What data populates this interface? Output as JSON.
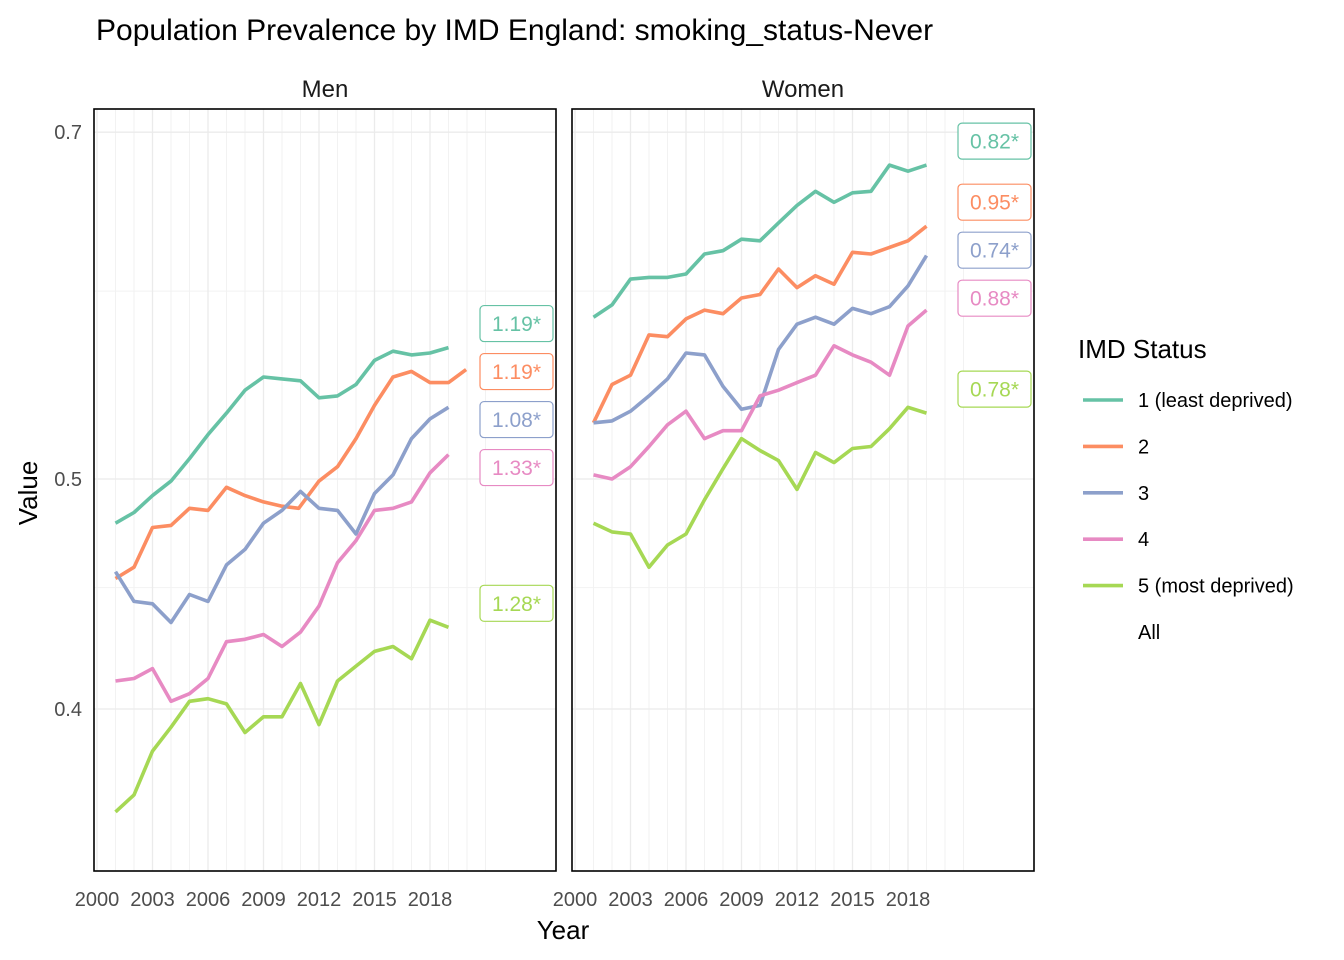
{
  "chart_data": {
    "type": "line",
    "title": "Population Prevalence by IMD England: smoking_status-Never",
    "xlabel": "Year",
    "ylabel": "Value",
    "y_scale": "log",
    "ylim": [
      0.355,
      0.73
    ],
    "xlim": [
      2000,
      2020
    ],
    "x_ticks": [
      "2000",
      "2003",
      "2006",
      "2009",
      "2012",
      "2015",
      "2018"
    ],
    "y_ticks": [
      "0.4",
      "0.5",
      "0.7"
    ],
    "x": [
      2001,
      2002,
      2003,
      2004,
      2005,
      2006,
      2007,
      2008,
      2009,
      2010,
      2011,
      2012,
      2013,
      2014,
      2015,
      2016,
      2017,
      2018,
      2019
    ],
    "legend": {
      "title": "IMD Status",
      "position": "right",
      "items": [
        {
          "label": "1 (least deprived)",
          "color": "#66C2A5"
        },
        {
          "label": "2",
          "color": "#FC8D62"
        },
        {
          "label": "3",
          "color": "#8DA0CB"
        },
        {
          "label": "4",
          "color": "#E78AC3"
        },
        {
          "label": "5 (most deprived)",
          "color": "#A6D854"
        },
        {
          "label": "All",
          "color": "none"
        }
      ]
    },
    "panels": [
      {
        "name": "Men",
        "series": [
          {
            "name": "1 (least deprived)",
            "color": "#66C2A5",
            "values": [
              0.479,
              0.484,
              0.492,
              0.499,
              0.51,
              0.522,
              0.533,
              0.545,
              0.552,
              0.551,
              0.55,
              0.541,
              0.542,
              0.548,
              0.561,
              0.566,
              0.564,
              0.565,
              0.568
            ],
            "label": "1.19*"
          },
          {
            "name": "2",
            "color": "#FC8D62",
            "values": [
              0.454,
              0.459,
              0.477,
              0.478,
              0.486,
              0.485,
              0.496,
              0.492,
              0.489,
              0.487,
              0.486,
              0.499,
              0.506,
              0.52,
              0.537,
              0.552,
              0.555,
              0.549,
              0.549,
              0.556
            ],
            "x_override": [
              2001,
              2002,
              2003,
              2004,
              2005,
              2006,
              2007,
              2008,
              2009,
              2010,
              2010.9,
              2012,
              2013,
              2014,
              2015,
              2016,
              2017,
              2018,
              2019,
              2019.95
            ],
            "label": "1.19*"
          },
          {
            "name": "3",
            "color": "#8DA0CB",
            "values": [
              0.457,
              0.444,
              0.443,
              0.435,
              0.447,
              0.444,
              0.46,
              0.467,
              0.479,
              0.485,
              0.494,
              0.486,
              0.485,
              0.474,
              0.493,
              0.502,
              0.52,
              0.53,
              0.536
            ],
            "label": "1.08*"
          },
          {
            "name": "4",
            "color": "#E78AC3",
            "values": [
              0.411,
              0.412,
              0.416,
              0.403,
              0.406,
              0.412,
              0.427,
              0.428,
              0.43,
              0.425,
              0.431,
              0.442,
              0.461,
              0.471,
              0.485,
              0.486,
              0.489,
              0.503,
              0.512
            ],
            "label": "1.33*"
          },
          {
            "name": "5 (most deprived)",
            "color": "#A6D854",
            "values": [
              0.362,
              0.368,
              0.384,
              0.393,
              0.403,
              0.404,
              0.402,
              0.391,
              0.397,
              0.397,
              0.41,
              0.394,
              0.411,
              0.417,
              0.423,
              0.425,
              0.42,
              0.436,
              0.433
            ],
            "label": "1.28*"
          }
        ]
      },
      {
        "name": "Women",
        "series": [
          {
            "name": "1 (least deprived)",
            "color": "#66C2A5",
            "values": [
              0.585,
              0.592,
              0.607,
              0.608,
              0.608,
              0.61,
              0.622,
              0.624,
              0.631,
              0.63,
              0.641,
              0.652,
              0.661,
              0.654,
              0.66,
              0.661,
              0.678,
              0.674,
              0.678
            ],
            "label": "0.82*"
          },
          {
            "name": "2",
            "color": "#FC8D62",
            "values": [
              0.528,
              0.548,
              0.553,
              0.575,
              0.574,
              0.584,
              0.589,
              0.587,
              0.596,
              0.598,
              0.613,
              0.602,
              0.609,
              0.604,
              0.623,
              0.622,
              0.626,
              0.63,
              0.639
            ],
            "label": "0.95*"
          },
          {
            "name": "3",
            "color": "#8DA0CB",
            "values": [
              0.528,
              0.529,
              0.534,
              0.542,
              0.551,
              0.565,
              0.564,
              0.547,
              0.535,
              0.537,
              0.567,
              0.581,
              0.585,
              0.581,
              0.59,
              0.587,
              0.591,
              0.603,
              0.621
            ],
            "label": "0.74*"
          },
          {
            "name": "4",
            "color": "#E78AC3",
            "values": [
              0.502,
              0.5,
              0.506,
              0.516,
              0.527,
              0.534,
              0.52,
              0.524,
              0.524,
              0.542,
              0.545,
              0.549,
              0.553,
              0.569,
              0.564,
              0.56,
              0.553,
              0.58,
              0.589
            ],
            "label": "0.88*"
          },
          {
            "name": "5 (most deprived)",
            "color": "#A6D854",
            "values": [
              0.479,
              0.475,
              0.474,
              0.459,
              0.469,
              0.474,
              0.49,
              0.505,
              0.52,
              0.514,
              0.509,
              0.495,
              0.513,
              0.508,
              0.515,
              0.516,
              0.525,
              0.536,
              0.533
            ],
            "label": "0.78*"
          }
        ]
      }
    ]
  }
}
